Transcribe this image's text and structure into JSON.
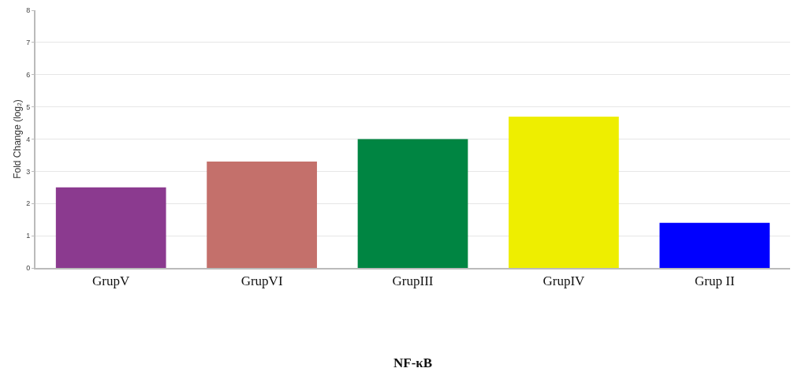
{
  "chart_data": {
    "type": "bar",
    "xlabel": "NF-κB",
    "ylabel": "Fold Change (log₂)",
    "categories": [
      "GrupV",
      "GrupVI",
      "GrupIII",
      "GrupIV",
      "Grup II"
    ],
    "values": [
      2.5,
      3.3,
      4.0,
      4.7,
      1.4
    ],
    "colors": [
      "#8b3a8f",
      "#c4706b",
      "#008542",
      "#eeee00",
      "#0000ff"
    ],
    "ylim": [
      0,
      8
    ],
    "yticks": [
      0,
      1,
      2,
      3,
      4,
      5,
      6,
      7,
      8
    ],
    "grid": "y"
  }
}
